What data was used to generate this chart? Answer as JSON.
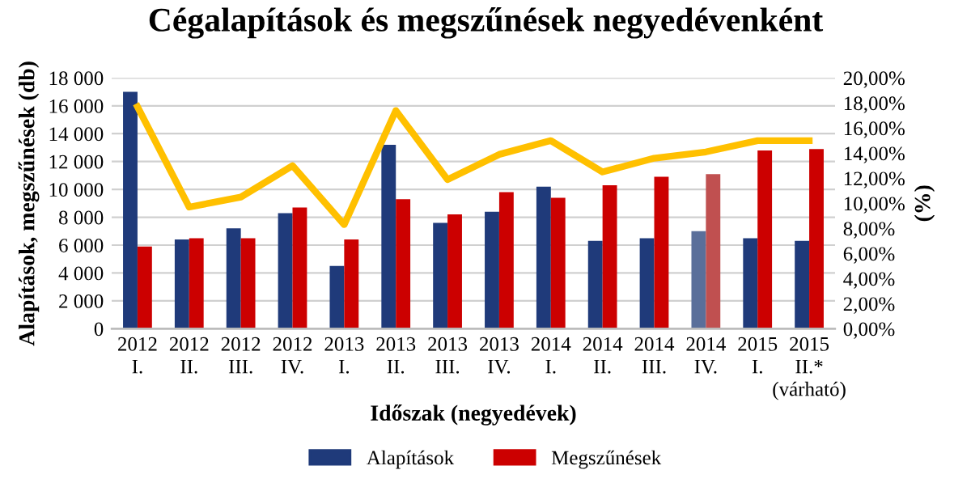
{
  "chart_data": {
    "type": "bar",
    "title": "Cégalapítások és megszűnések negyedévenként",
    "xlabel": "Időszak (negyedévek)",
    "ylabel": "Alapítások, megszűnések (db)",
    "y2label": "(%)",
    "categories": [
      "2012\nI.",
      "2012\nII.",
      "2012\nIII.",
      "2012\nIV.",
      "2013\nI.",
      "2013\nII.",
      "2013\nIII.",
      "2013\nIV.",
      "2014\nI.",
      "2014\nII.",
      "2014\nIII.",
      "2014\nIV.",
      "2015\nI.",
      "2015\nII.*\n(várható)"
    ],
    "series": [
      {
        "name": "Alapítások",
        "color": "#1f3a7a",
        "colors": [
          "#1f3a7a",
          "#1f3a7a",
          "#1f3a7a",
          "#1f3a7a",
          "#1f3a7a",
          "#1f3a7a",
          "#1f3a7a",
          "#1f3a7a",
          "#1f3a7a",
          "#1f3a7a",
          "#1f3a7a",
          "#5a6f9a",
          "#1f3a7a",
          "#1f3a7a"
        ],
        "values": [
          17000,
          6400,
          7200,
          8300,
          4500,
          13200,
          7600,
          8400,
          10200,
          6300,
          6500,
          7000,
          6500,
          6300
        ]
      },
      {
        "name": "Megszűnések",
        "color": "#cc0000",
        "colors": [
          "#cc0000",
          "#cc0000",
          "#cc0000",
          "#cc0000",
          "#cc0000",
          "#cc0000",
          "#cc0000",
          "#cc0000",
          "#cc0000",
          "#cc0000",
          "#cc0000",
          "#c05050",
          "#cc0000",
          "#cc0000"
        ],
        "values": [
          5900,
          6500,
          6500,
          8700,
          6400,
          9300,
          8200,
          9800,
          9400,
          10300,
          10900,
          11100,
          12800,
          12900
        ]
      },
      {
        "type": "line",
        "axis": "y2",
        "color": "#ffc000",
        "values": [
          17.7,
          9.7,
          10.5,
          13.0,
          8.3,
          17.4,
          11.9,
          13.9,
          15.0,
          12.5,
          13.6,
          14.1,
          15.0,
          15.0
        ]
      }
    ],
    "ylim": [
      0,
      18000
    ],
    "yticks": [
      {
        "value": 0,
        "label": "0"
      },
      {
        "value": 2000,
        "label": "2 000"
      },
      {
        "value": 4000,
        "label": "4 000"
      },
      {
        "value": 6000,
        "label": "6 000"
      },
      {
        "value": 8000,
        "label": "8 000"
      },
      {
        "value": 10000,
        "label": "10 000"
      },
      {
        "value": 12000,
        "label": "12 000"
      },
      {
        "value": 14000,
        "label": "14 000"
      },
      {
        "value": 16000,
        "label": "16 000"
      },
      {
        "value": 18000,
        "label": "18 000"
      }
    ],
    "y2lim": [
      0,
      20
    ],
    "y2ticks": [
      {
        "value": 0,
        "label": "0,00%"
      },
      {
        "value": 2,
        "label": "2,00%"
      },
      {
        "value": 4,
        "label": "4,00%"
      },
      {
        "value": 6,
        "label": "6,00%"
      },
      {
        "value": 8,
        "label": "8,00%"
      },
      {
        "value": 10,
        "label": "10,00%"
      },
      {
        "value": 12,
        "label": "12,00%"
      },
      {
        "value": 14,
        "label": "14,00%"
      },
      {
        "value": 16,
        "label": "16,00%"
      },
      {
        "value": 18,
        "label": "18,00%"
      },
      {
        "value": 20,
        "label": "20,00%"
      }
    ],
    "grid": "y",
    "legend": "bottom"
  }
}
